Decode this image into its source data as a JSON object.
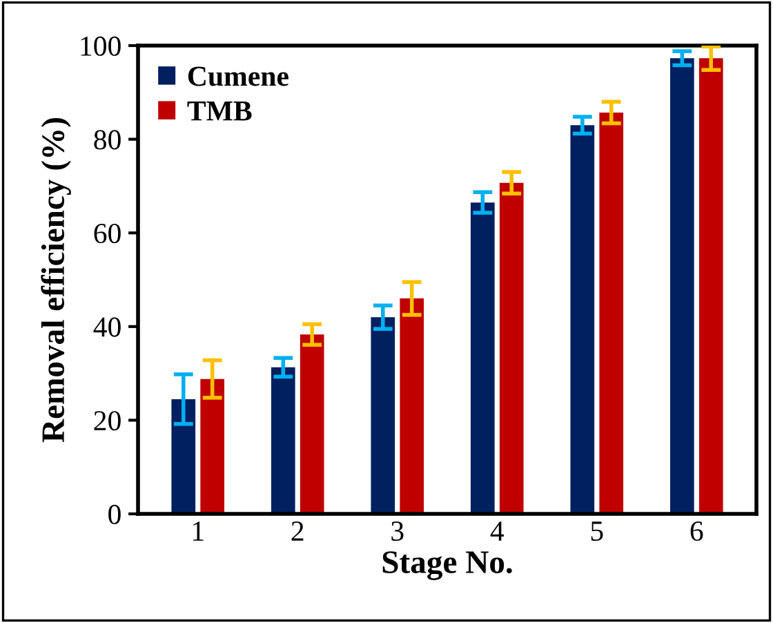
{
  "chart_data": {
    "type": "bar",
    "xlabel": "Stage No.",
    "ylabel": "Removal efficiency (%)",
    "categories": [
      "1",
      "2",
      "3",
      "4",
      "5",
      "6"
    ],
    "series": [
      {
        "name": "Cumene",
        "color": "#002060",
        "values": [
          24.5,
          31.3,
          42,
          66.5,
          83,
          97.3
        ],
        "errors": [
          5.3,
          2,
          2.5,
          2.2,
          1.8,
          1.5
        ]
      },
      {
        "name": "TMB",
        "color": "#c00000",
        "values": [
          28.8,
          38.3,
          46,
          70.7,
          85.7,
          97.3
        ],
        "errors": [
          4,
          2.2,
          3.5,
          2.3,
          2.3,
          2.5
        ]
      }
    ],
    "ylim": [
      0,
      100
    ],
    "yticks": [
      0,
      20,
      40,
      60,
      80,
      100
    ],
    "grid": false,
    "legend": "top left"
  }
}
